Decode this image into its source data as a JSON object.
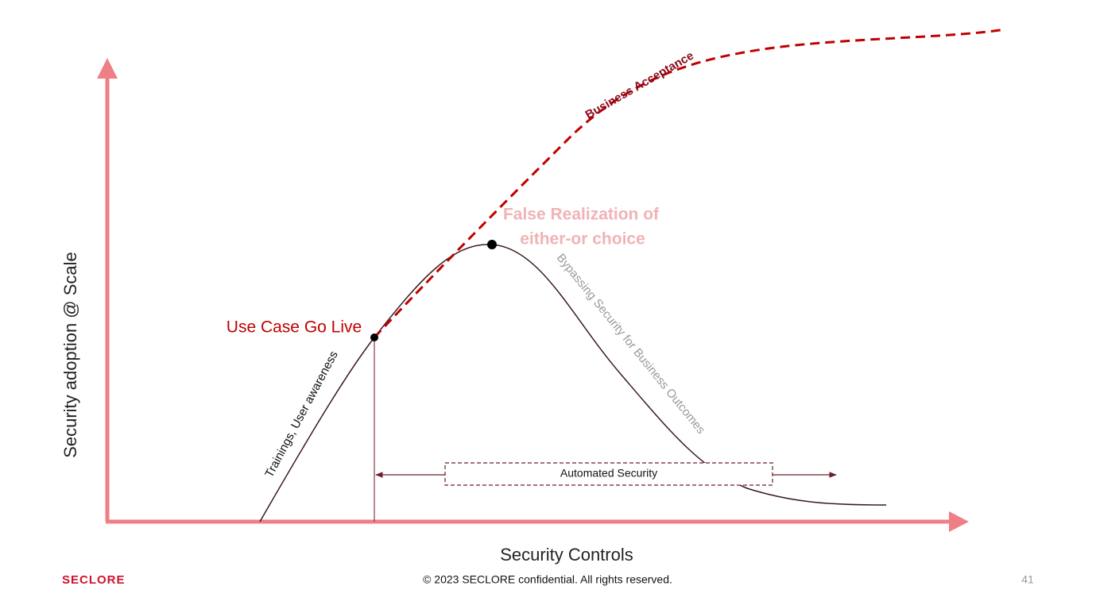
{
  "diagram": {
    "y_axis_label": "Security adoption @ Scale",
    "x_axis_label": "Security Controls",
    "curves": {
      "business_acceptance": "Business Acceptance",
      "bypassing": "Bypassing Security for Business Outcomes",
      "trainings": "Trainings, User awareness"
    },
    "points": {
      "go_live": "Use Case Go Live",
      "false_realization": [
        "False Realization of",
        "either-or choice"
      ]
    },
    "range_label": "Automated Security"
  },
  "footer": {
    "logo": "SECLORE",
    "copyright": "© 2023 SECLORE confidential. All rights reserved.",
    "page_number": "41"
  }
}
